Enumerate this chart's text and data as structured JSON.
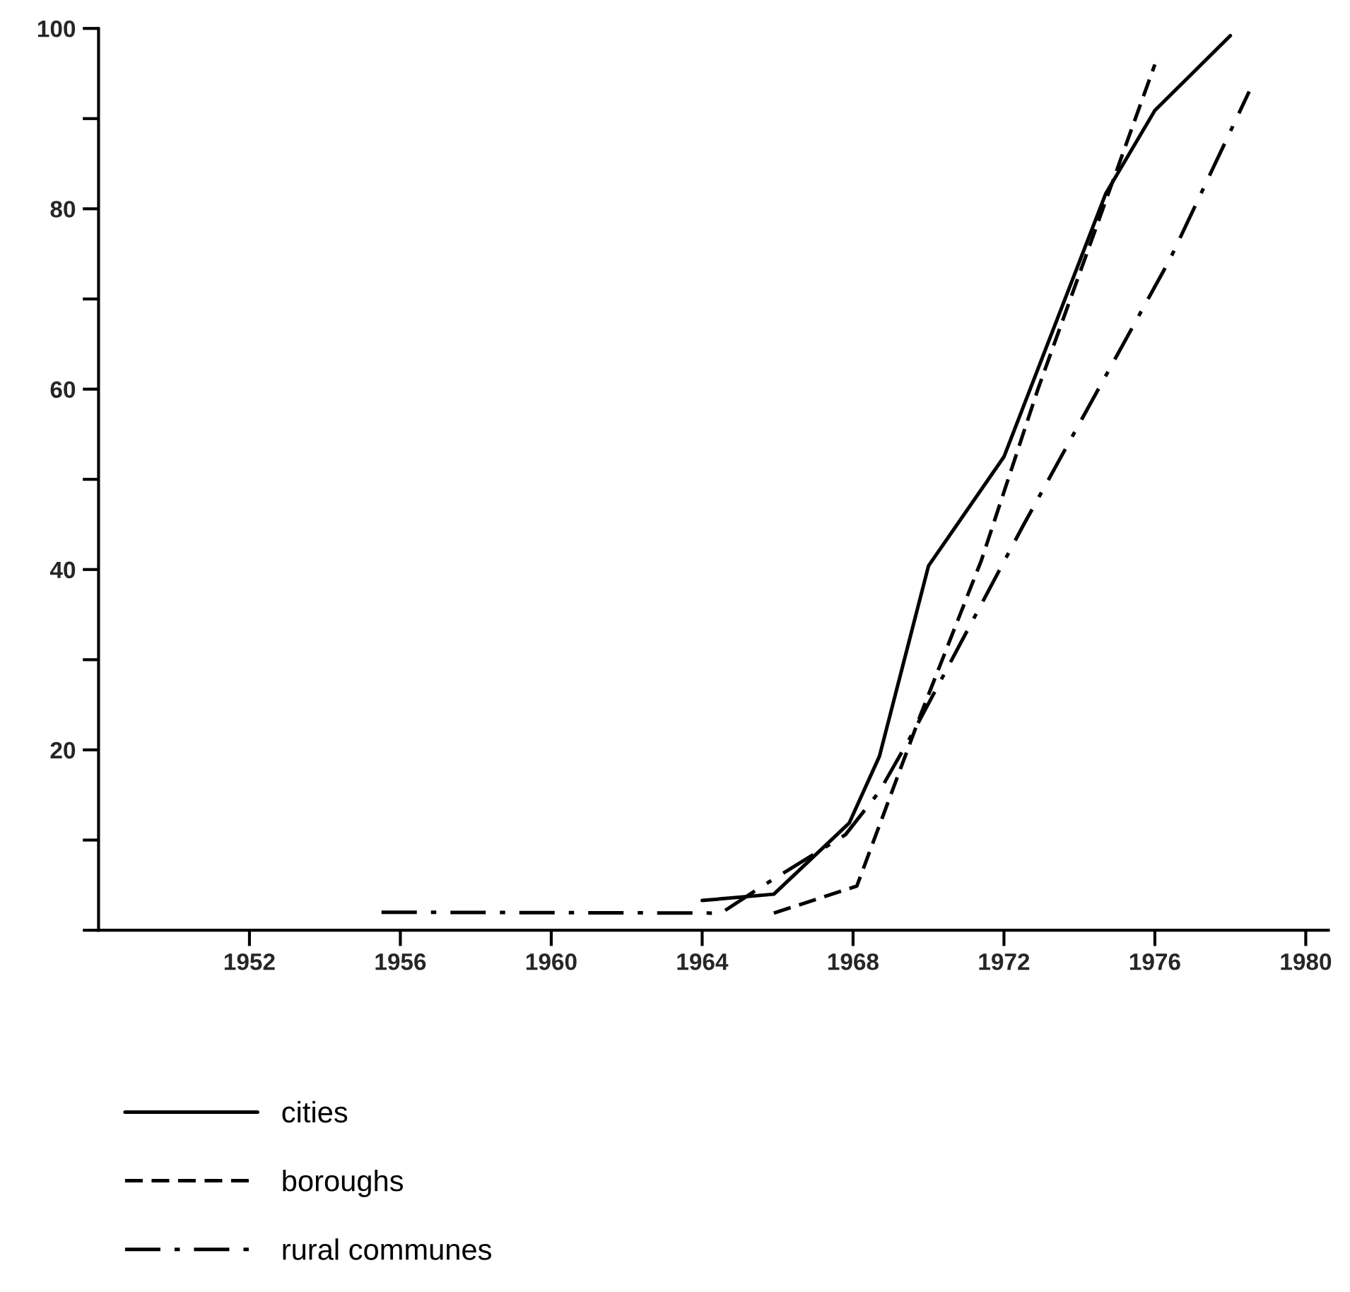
{
  "chart_data": {
    "type": "line",
    "xlim": [
      1948,
      1980.6
    ],
    "ylim": [
      0,
      100
    ],
    "xticks": [
      1952,
      1956,
      1960,
      1964,
      1968,
      1972,
      1976,
      1980
    ],
    "yticks": [
      {
        "value": 0,
        "label": null
      },
      {
        "value": 10,
        "label": null
      },
      20,
      {
        "value": 30,
        "label": null
      },
      40,
      {
        "value": 50,
        "label": null
      },
      60,
      {
        "value": 70,
        "label": null
      },
      80,
      {
        "value": 90,
        "label": null
      },
      100
    ],
    "grid": false,
    "legend": "bottom",
    "marker": "none",
    "series": [
      {
        "name": "cities",
        "color": "#000000",
        "line_style": "solid",
        "x": [
          1964,
          1965.9,
          1967.9,
          1968.7,
          1970,
          1972,
          1974.7,
          1976,
          1978
        ],
        "values": [
          3.3,
          4,
          11.9,
          19.3,
          40.4,
          52.5,
          81.7,
          90.9,
          99.2
        ]
      },
      {
        "name": "boroughs",
        "color": "#000000",
        "line_style": "dashed",
        "x": [
          1965.9,
          1968.1,
          1969.8,
          1971.4,
          1972.9,
          1976
        ],
        "values": [
          1.9,
          4.9,
          24,
          41,
          60,
          96
        ]
      },
      {
        "name": "rural communes",
        "color": "#000000",
        "line_style": "dashdot",
        "x": [
          1955.5,
          1964.5,
          1965.6,
          1967.8,
          1968.7,
          1969.6,
          1972.5,
          1976.4,
          1978.5
        ],
        "values": [
          2,
          1.9,
          4.9,
          10.6,
          15.4,
          22,
          44.8,
          74.4,
          93
        ]
      }
    ]
  }
}
